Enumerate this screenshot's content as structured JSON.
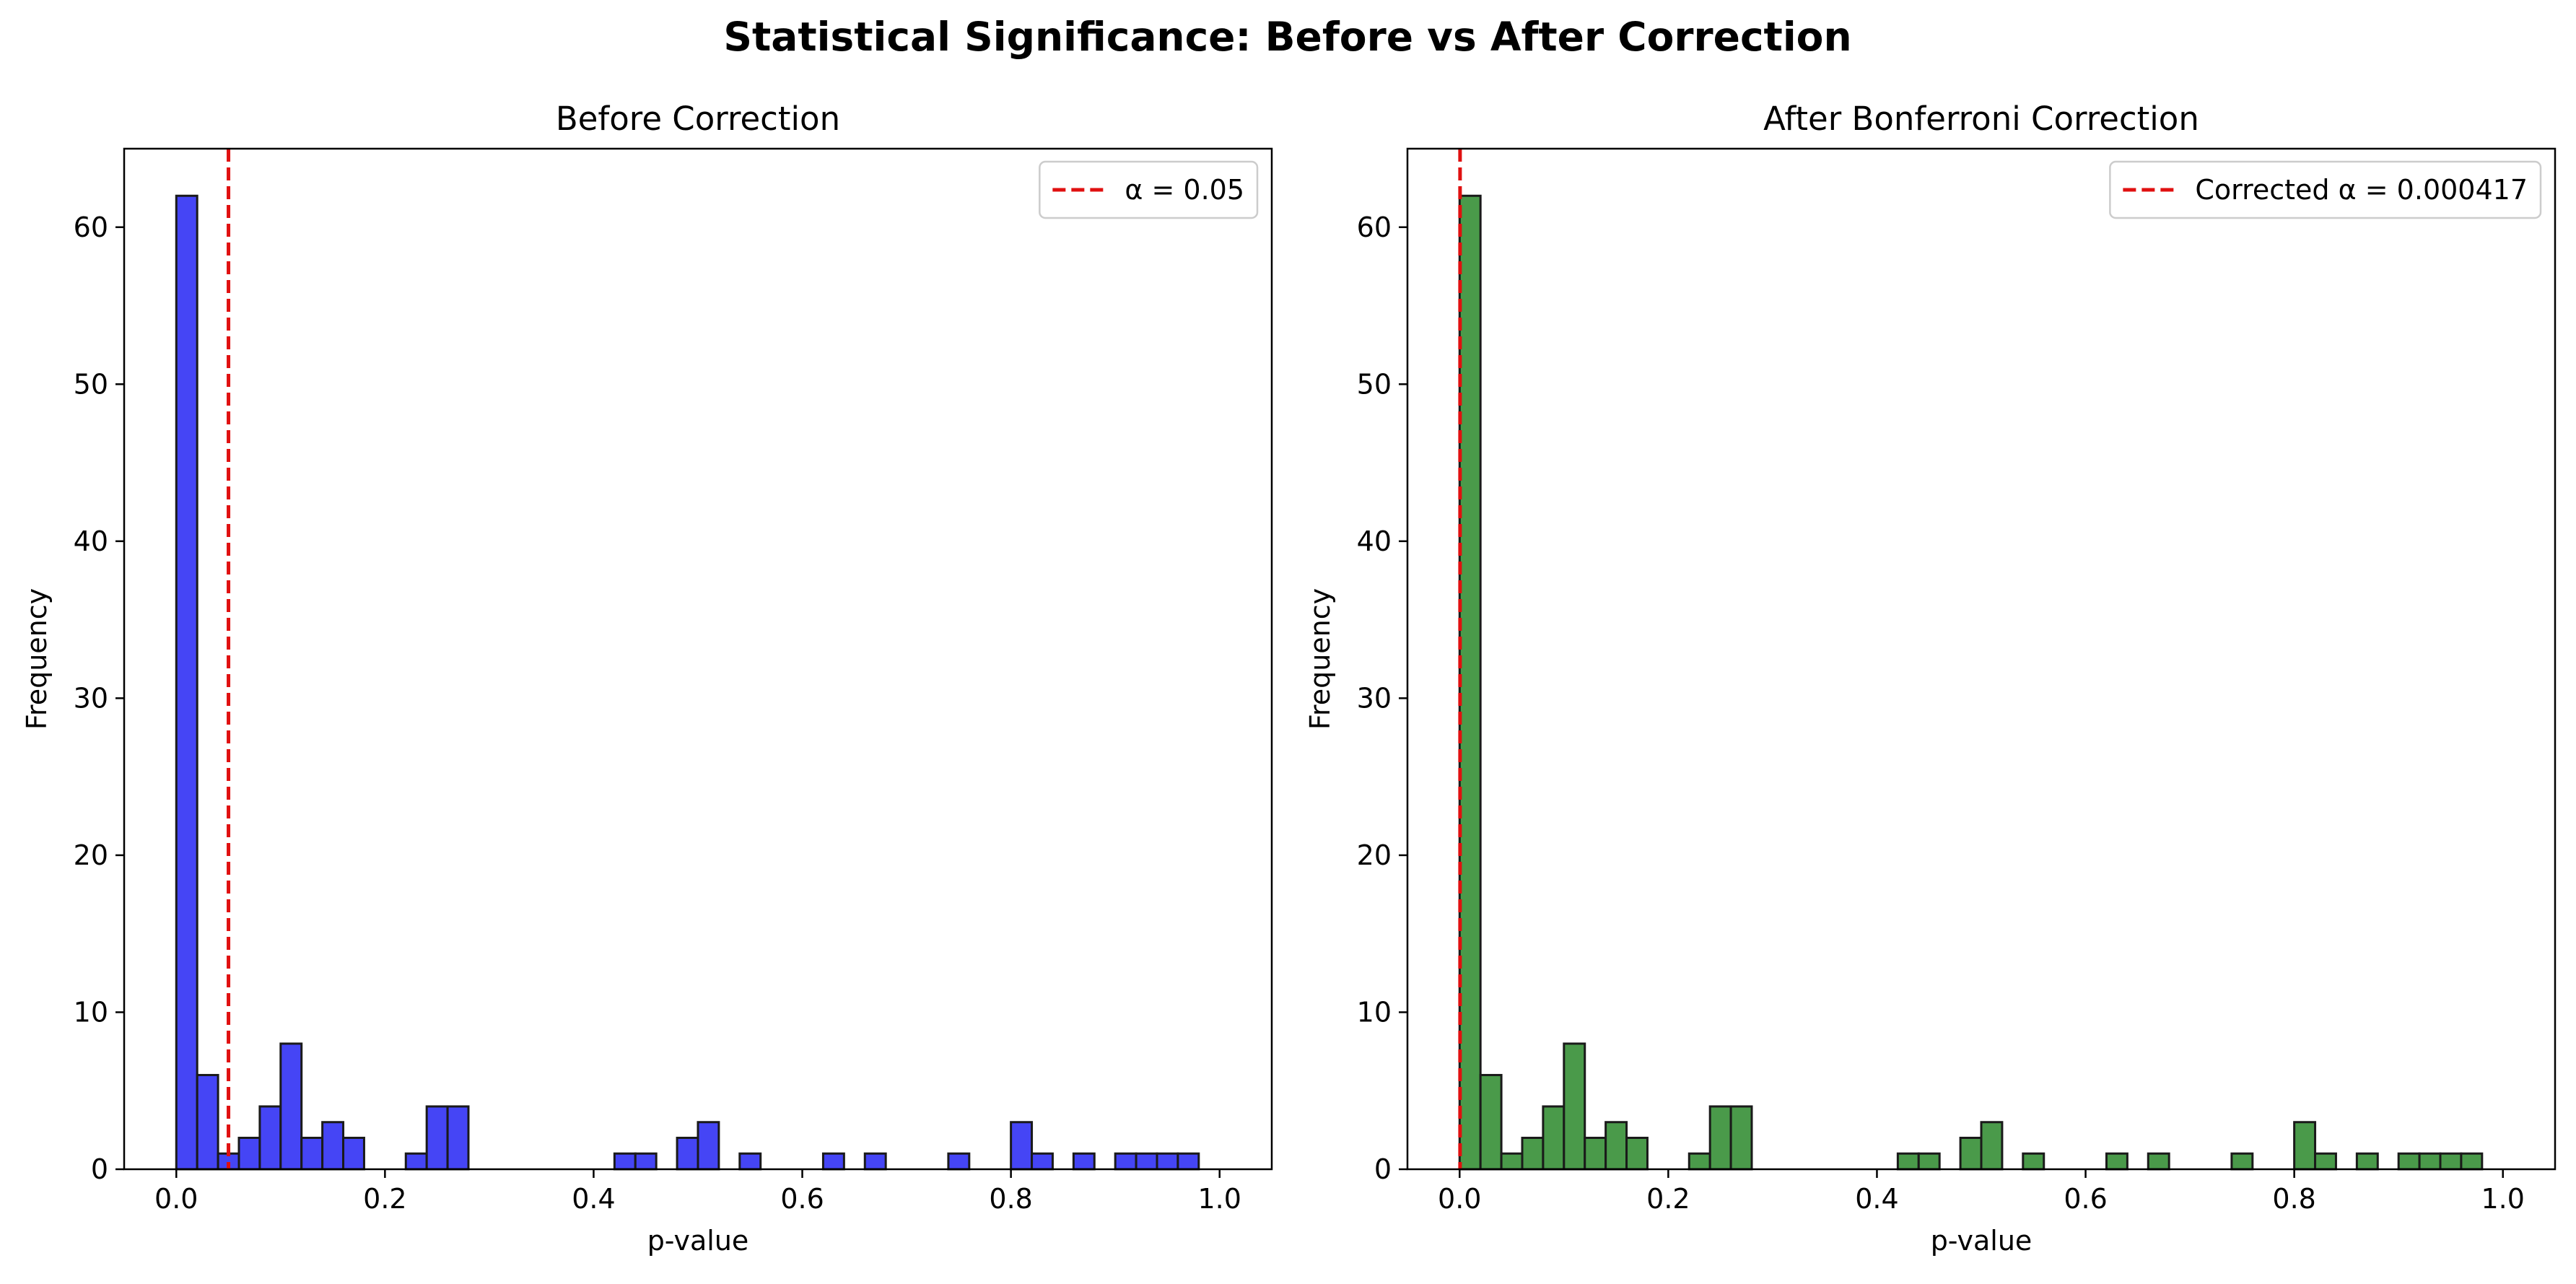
{
  "figure": {
    "title": "Statistical Significance: Before vs After Correction"
  },
  "chart_data": [
    {
      "type": "bar",
      "subtype": "histogram",
      "title": "Before Correction",
      "xlabel": "p-value",
      "ylabel": "Frequency",
      "xlim": [
        -0.05,
        1.05
      ],
      "ylim": [
        0,
        65
      ],
      "xticks": [
        0.0,
        0.2,
        0.4,
        0.6,
        0.8,
        1.0
      ],
      "xtick_labels": [
        "0.0",
        "0.2",
        "0.4",
        "0.6",
        "0.8",
        "1.0"
      ],
      "yticks": [
        0,
        10,
        20,
        30,
        40,
        50,
        60
      ],
      "ytick_labels": [
        "0",
        "10",
        "20",
        "30",
        "40",
        "50",
        "60"
      ],
      "bin_start": 0.0,
      "bin_width": 0.02,
      "counts": [
        62,
        6,
        1,
        2,
        4,
        8,
        2,
        3,
        2,
        0,
        0,
        1,
        4,
        4,
        0,
        0,
        0,
        0,
        0,
        0,
        0,
        1,
        1,
        0,
        2,
        3,
        0,
        1,
        0,
        0,
        0,
        1,
        0,
        1,
        0,
        0,
        0,
        1,
        0,
        0,
        3,
        1,
        0,
        1,
        0,
        1,
        1,
        1,
        1,
        0
      ],
      "bar_color": "#4545f5",
      "edge_color": "#1a1a1a",
      "threshold": {
        "value": 0.05,
        "color": "#e01010",
        "style": "dashed"
      },
      "legend": {
        "position": "upper right",
        "entries": [
          {
            "label": "α = 0.05",
            "color": "#e01010",
            "style": "dashed"
          }
        ]
      },
      "grid": false
    },
    {
      "type": "bar",
      "subtype": "histogram",
      "title": "After Bonferroni Correction",
      "xlabel": "p-value",
      "ylabel": "Frequency",
      "xlim": [
        -0.05,
        1.05
      ],
      "ylim": [
        0,
        65
      ],
      "xticks": [
        0.0,
        0.2,
        0.4,
        0.6,
        0.8,
        1.0
      ],
      "xtick_labels": [
        "0.0",
        "0.2",
        "0.4",
        "0.6",
        "0.8",
        "1.0"
      ],
      "yticks": [
        0,
        10,
        20,
        30,
        40,
        50,
        60
      ],
      "ytick_labels": [
        "0",
        "10",
        "20",
        "30",
        "40",
        "50",
        "60"
      ],
      "bin_start": 0.0,
      "bin_width": 0.02,
      "counts": [
        62,
        6,
        1,
        2,
        4,
        8,
        2,
        3,
        2,
        0,
        0,
        1,
        4,
        4,
        0,
        0,
        0,
        0,
        0,
        0,
        0,
        1,
        1,
        0,
        2,
        3,
        0,
        1,
        0,
        0,
        0,
        1,
        0,
        1,
        0,
        0,
        0,
        1,
        0,
        0,
        3,
        1,
        0,
        1,
        0,
        1,
        1,
        1,
        1,
        0
      ],
      "bar_color": "#4a9a4a",
      "edge_color": "#1a1a1a",
      "threshold": {
        "value": 0.000417,
        "color": "#e01010",
        "style": "dashed"
      },
      "legend": {
        "position": "upper right",
        "entries": [
          {
            "label": "Corrected α = 0.000417",
            "color": "#e01010",
            "style": "dashed"
          }
        ]
      },
      "grid": false
    }
  ]
}
